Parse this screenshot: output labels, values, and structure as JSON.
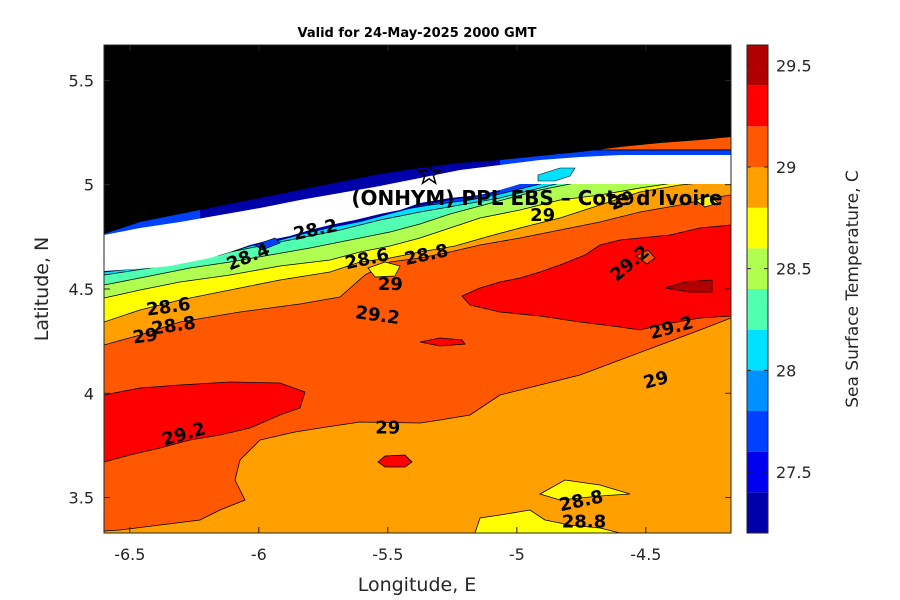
{
  "chart_data": {
    "type": "heatmap",
    "title": "Valid for 24-May-2025 2000 GMT",
    "xlabel": "Longitude, E",
    "ylabel": "Latitude, N",
    "xlim": [
      -6.6,
      -4.17
    ],
    "ylim": [
      3.33,
      5.67
    ],
    "xticks": [
      -6.5,
      -6,
      -5.5,
      -5,
      -4.5
    ],
    "yticks": [
      3.5,
      4,
      4.5,
      5,
      5.5
    ],
    "colorbar": {
      "label": "Sea Surface Temperature, C",
      "min": 27.2,
      "max": 29.6,
      "step": 0.1,
      "ticks": [
        27.5,
        28,
        28.5,
        29,
        29.5
      ],
      "colors": [
        "#0000aa",
        "#0000ee",
        "#0040ff",
        "#0090ff",
        "#00e0ff",
        "#50ffb0",
        "#b0ff50",
        "#ffff00",
        "#ffa000",
        "#ff5800",
        "#ff0000",
        "#b00000"
      ],
      "levels": [
        27.2,
        27.4,
        27.6,
        27.8,
        28.0,
        28.2,
        28.4,
        28.6,
        28.8,
        29.0,
        29.2,
        29.4,
        29.6
      ]
    },
    "contour_labels": [
      {
        "text": "28.2",
        "lon": -5.78,
        "lat": 4.78
      },
      {
        "text": "28.4",
        "lon": -6.04,
        "lat": 4.65
      },
      {
        "text": "28.6",
        "lon": -5.58,
        "lat": 4.64
      },
      {
        "text": "28.8",
        "lon": -5.35,
        "lat": 4.66
      },
      {
        "text": "29",
        "lon": -5.49,
        "lat": 4.52
      },
      {
        "text": "28.6",
        "lon": -6.35,
        "lat": 4.41
      },
      {
        "text": "28.8",
        "lon": -6.33,
        "lat": 4.32
      },
      {
        "text": "29",
        "lon": -6.44,
        "lat": 4.27
      },
      {
        "text": "29.2",
        "lon": -5.54,
        "lat": 4.37
      },
      {
        "text": "29",
        "lon": -4.9,
        "lat": 4.85
      },
      {
        "text": "29",
        "lon": -4.59,
        "lat": 4.92
      },
      {
        "text": "29.2",
        "lon": -4.56,
        "lat": 4.62
      },
      {
        "text": "29.2",
        "lon": -4.4,
        "lat": 4.31
      },
      {
        "text": "29",
        "lon": -4.46,
        "lat": 4.06
      },
      {
        "text": "29.2",
        "lon": -6.29,
        "lat": 3.8
      },
      {
        "text": "29",
        "lon": -5.5,
        "lat": 3.83
      },
      {
        "text": "28.8",
        "lon": -4.75,
        "lat": 3.48
      },
      {
        "text": "28.8",
        "lon": -4.74,
        "lat": 3.38
      }
    ],
    "annotations": [
      {
        "text": "(ONHYM) PPL EBS  – Cote d’Ivoire",
        "lon": -5.75,
        "lat": 4.97
      }
    ],
    "marker": {
      "symbol": "star",
      "lon": -5.34,
      "lat": 5.05
    },
    "grid": false,
    "legend": "colorbar-right"
  }
}
